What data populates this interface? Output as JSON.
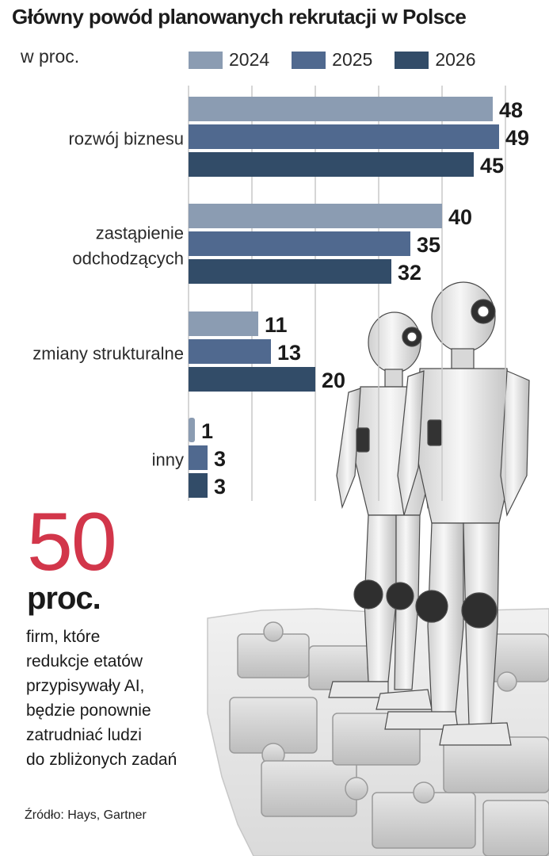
{
  "header": {
    "title": "Główny powód planowanych rekrutacji w Polsce",
    "subtitle": "w proc."
  },
  "legend": [
    {
      "label": "2024",
      "color": "#8b9cb2"
    },
    {
      "label": "2025",
      "color": "#50698f"
    },
    {
      "label": "2026",
      "color": "#324c68"
    }
  ],
  "chart_data": {
    "type": "bar",
    "orientation": "horizontal",
    "title": "Główny powód planowanych rekrutacji w Polsce",
    "unit": "w proc.",
    "categories": [
      {
        "lines": [
          "rozwój biznesu"
        ]
      },
      {
        "lines": [
          "zastąpienie",
          "odchodzących"
        ]
      },
      {
        "lines": [
          "zmiany strukturalne"
        ]
      },
      {
        "lines": [
          "inny"
        ]
      }
    ],
    "series": [
      {
        "name": "2024",
        "values": [
          48,
          40,
          11,
          1
        ]
      },
      {
        "name": "2025",
        "values": [
          49,
          35,
          13,
          3
        ]
      },
      {
        "name": "2026",
        "values": [
          45,
          32,
          20,
          3
        ]
      }
    ],
    "xlim": [
      0,
      50
    ],
    "grid": true,
    "legend_position": "top"
  },
  "highlight": {
    "number": "50",
    "unit": "proc.",
    "description_lines": [
      "firm, które",
      "redukcje etatów",
      "przypisywały AI,",
      "będzie ponownie",
      "zatrudniać ludzi",
      "do zbliżonych zadań"
    ]
  },
  "source": "Źródło: Hays, Gartner",
  "colors": {
    "accent_red": "#d2364a",
    "gridline": "#c8c8c8"
  },
  "illustration": {
    "icon": "humanoid-robots-on-puzzle-pieces-illustration"
  }
}
